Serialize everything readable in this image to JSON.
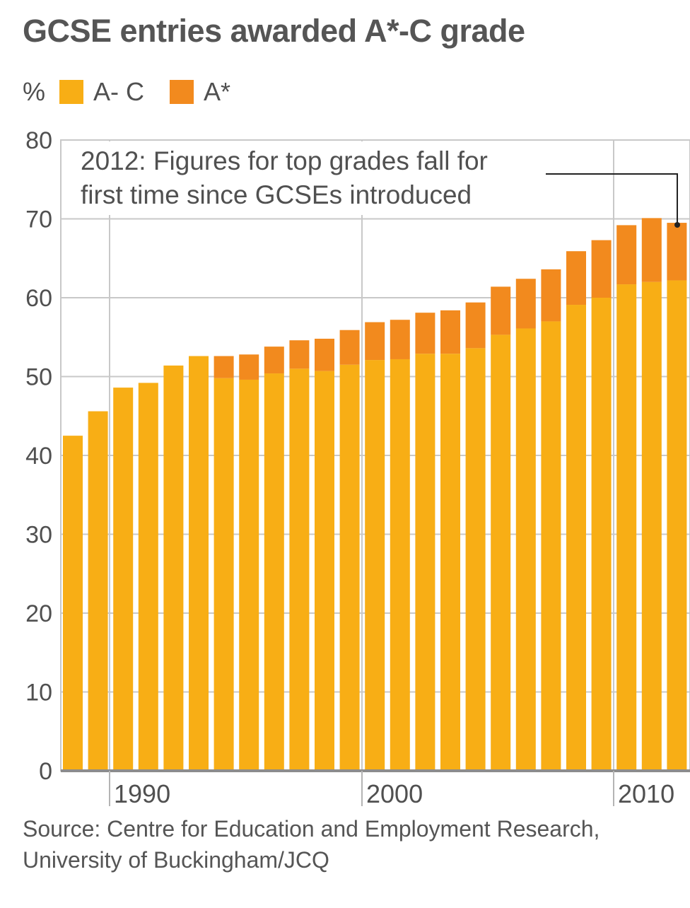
{
  "title": "GCSE entries awarded A*-C grade",
  "legend": {
    "unit": "%",
    "items": [
      {
        "label": "A- C",
        "color": "#f8ae15"
      },
      {
        "label": "A*",
        "color": "#f28a1e"
      }
    ]
  },
  "annotation": {
    "line1": "2012: Figures for top grades fall for",
    "line2": "first time since GCSEs introduced"
  },
  "source": {
    "line1": "Source: Centre for Education and Employment Research,",
    "line2": "University of Buckingham/JCQ"
  },
  "chart_data": {
    "type": "bar",
    "stacked": true,
    "title": "GCSE entries awarded A*-C grade",
    "ylabel": "%",
    "ylim": [
      0,
      80
    ],
    "yticks": [
      0,
      10,
      20,
      30,
      40,
      50,
      60,
      70,
      80
    ],
    "xtick_labels": [
      "1990",
      "2000",
      "2010"
    ],
    "grid": true,
    "legend_position": "top-left",
    "categories": [
      1988,
      1989,
      1990,
      1991,
      1992,
      1993,
      1994,
      1995,
      1996,
      1997,
      1998,
      1999,
      2000,
      2001,
      2002,
      2003,
      2004,
      2005,
      2006,
      2007,
      2008,
      2009,
      2010,
      2011,
      2012
    ],
    "series": [
      {
        "name": "A- C",
        "color": "#f8ae15",
        "values": [
          42.5,
          45.6,
          48.6,
          49.2,
          51.4,
          52.6,
          49.8,
          49.6,
          50.4,
          51.0,
          50.7,
          51.5,
          52.1,
          52.2,
          52.9,
          52.9,
          53.6,
          55.3,
          56.1,
          57.0,
          59.1,
          60.0,
          61.7,
          62.0,
          62.2
        ]
      },
      {
        "name": "A*",
        "color": "#f28a1e",
        "values": [
          0,
          0,
          0,
          0,
          0,
          0,
          2.8,
          3.2,
          3.4,
          3.6,
          4.1,
          4.4,
          4.8,
          5.0,
          5.2,
          5.5,
          5.8,
          6.1,
          6.3,
          6.6,
          6.8,
          7.3,
          7.5,
          8.1,
          7.3
        ]
      }
    ],
    "totals": [
      42.5,
      45.6,
      48.6,
      49.2,
      51.4,
      52.6,
      52.6,
      52.8,
      53.8,
      54.6,
      54.8,
      55.9,
      56.9,
      57.2,
      58.1,
      58.4,
      59.4,
      61.4,
      62.4,
      63.6,
      65.9,
      67.3,
      69.2,
      70.1,
      69.5
    ],
    "annotation": "2012: Figures for top grades fall for first time since GCSEs introduced"
  }
}
